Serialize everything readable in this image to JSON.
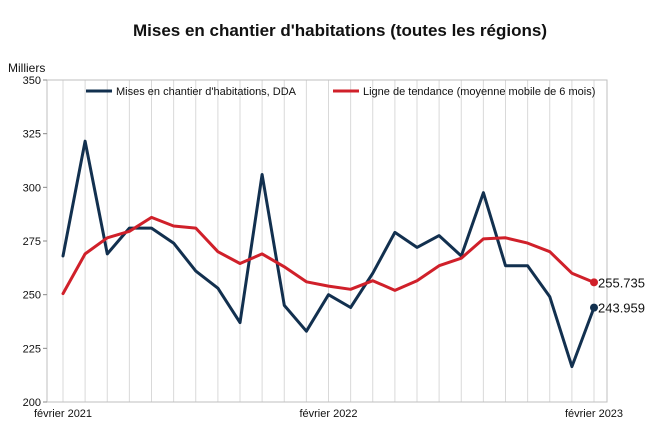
{
  "chart_data": {
    "type": "line",
    "title": "Mises en chantier d'habitations (toutes les régions)",
    "ylabel": "Milliers",
    "xlabel": "",
    "ylim": [
      200,
      350
    ],
    "yticks": [
      200,
      225,
      250,
      275,
      300,
      325,
      350
    ],
    "x_tick_labels": [
      {
        "index": 0,
        "label": "février 2021"
      },
      {
        "index": 12,
        "label": "février 2022"
      },
      {
        "index": 24,
        "label": "février 2023"
      }
    ],
    "grid": "vertical",
    "legend_position": "top",
    "series": [
      {
        "name": "Mises en chantier d'habitations, DDA",
        "color": "#12304f",
        "values": [
          268,
          321.5,
          269,
          281,
          281,
          274,
          261,
          253,
          237,
          306,
          245,
          233,
          250,
          244,
          260,
          279,
          272,
          277.5,
          268,
          297.5,
          263.5,
          263.5,
          249,
          216.5,
          243.959
        ],
        "end_label": "243.959"
      },
      {
        "name": "Ligne de tendance (moyenne mobile de 6 mois)",
        "color": "#d0202a",
        "values": [
          250.5,
          269,
          276.5,
          279.5,
          286,
          282,
          281,
          270,
          264.5,
          269,
          263,
          256,
          254,
          252.5,
          256.5,
          252,
          256.5,
          263.5,
          267,
          276,
          276.5,
          274,
          270,
          260,
          255.735
        ],
        "end_label": "255.735"
      }
    ]
  }
}
